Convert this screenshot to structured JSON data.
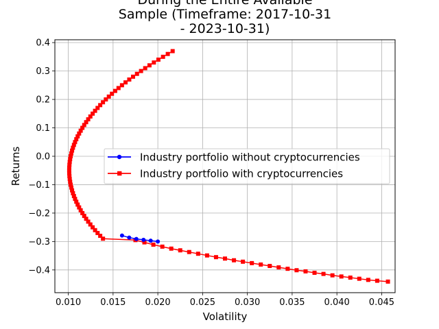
{
  "chart_data": {
    "type": "line",
    "title_lines": [
      "During the Entire Available",
      "Sample (Timeframe: 2017-10-31",
      "- 2023-10-31)"
    ],
    "xlabel": "Volatility",
    "ylabel": "Returns",
    "xlim": [
      0.0085,
      0.0465
    ],
    "ylim": [
      -0.48,
      0.41
    ],
    "xticks": [
      0.01,
      0.015,
      0.02,
      0.025,
      0.03,
      0.035,
      0.04,
      0.045
    ],
    "xtick_labels": [
      "0.010",
      "0.015",
      "0.020",
      "0.025",
      "0.030",
      "0.035",
      "0.040",
      "0.045"
    ],
    "yticks": [
      -0.4,
      -0.3,
      -0.2,
      -0.1,
      0.0,
      0.1,
      0.2,
      0.3,
      0.4
    ],
    "ytick_labels": [
      "−0.4",
      "−0.3",
      "−0.2",
      "−0.1",
      "0.0",
      "0.1",
      "0.2",
      "0.3",
      "0.4"
    ],
    "grid": true,
    "legend_position": "center-right",
    "series": [
      {
        "name": "Industry portfolio without cryptocurrencies",
        "color": "#0000ff",
        "marker": "circle",
        "points": [
          [
            0.016,
            -0.279
          ],
          [
            0.0168,
            -0.286
          ],
          [
            0.0176,
            -0.291
          ],
          [
            0.0184,
            -0.294
          ],
          [
            0.0192,
            -0.297
          ],
          [
            0.02,
            -0.3
          ]
        ]
      },
      {
        "name": "Industry portfolio with cryptocurrencies",
        "color": "#ff0000",
        "marker": "square",
        "vertex": [
          0.0101,
          -0.05
        ],
        "curve_coeff": 0.0655,
        "upper_y_values": [
          -0.05,
          -0.04,
          -0.03,
          -0.02,
          -0.01,
          0.0,
          0.01,
          0.02,
          0.03,
          0.04,
          0.05,
          0.06,
          0.07,
          0.08,
          0.09,
          0.1,
          0.11,
          0.12,
          0.13,
          0.14,
          0.15,
          0.16,
          0.17,
          0.18,
          0.19,
          0.2,
          0.21,
          0.22,
          0.23,
          0.24,
          0.25,
          0.26,
          0.27,
          0.28,
          0.29,
          0.3,
          0.31,
          0.32,
          0.33,
          0.34,
          0.35,
          0.36,
          0.37
        ],
        "lower_y_values": [
          -0.06,
          -0.07,
          -0.08,
          -0.09,
          -0.1,
          -0.11,
          -0.12,
          -0.13,
          -0.14,
          -0.15,
          -0.16,
          -0.17,
          -0.18,
          -0.19,
          -0.2,
          -0.21,
          -0.22,
          -0.23,
          -0.24,
          -0.25,
          -0.26,
          -0.27,
          -0.28,
          -0.29
        ],
        "tail_points": [
          [
            0.0175,
            -0.295
          ],
          [
            0.0185,
            -0.303
          ],
          [
            0.0195,
            -0.311
          ],
          [
            0.0205,
            -0.318
          ],
          [
            0.0215,
            -0.325
          ],
          [
            0.0225,
            -0.331
          ],
          [
            0.0235,
            -0.337
          ],
          [
            0.0245,
            -0.343
          ],
          [
            0.0255,
            -0.349
          ],
          [
            0.0265,
            -0.355
          ],
          [
            0.0275,
            -0.36
          ],
          [
            0.0285,
            -0.366
          ],
          [
            0.0295,
            -0.371
          ],
          [
            0.0305,
            -0.376
          ],
          [
            0.0315,
            -0.381
          ],
          [
            0.0325,
            -0.386
          ],
          [
            0.0335,
            -0.391
          ],
          [
            0.0345,
            -0.396
          ],
          [
            0.0355,
            -0.401
          ],
          [
            0.0365,
            -0.405
          ],
          [
            0.0375,
            -0.41
          ],
          [
            0.0385,
            -0.414
          ],
          [
            0.0395,
            -0.419
          ],
          [
            0.0405,
            -0.423
          ],
          [
            0.0415,
            -0.427
          ],
          [
            0.0425,
            -0.431
          ],
          [
            0.0435,
            -0.435
          ],
          [
            0.0445,
            -0.438
          ],
          [
            0.0457,
            -0.441
          ]
        ]
      }
    ]
  }
}
